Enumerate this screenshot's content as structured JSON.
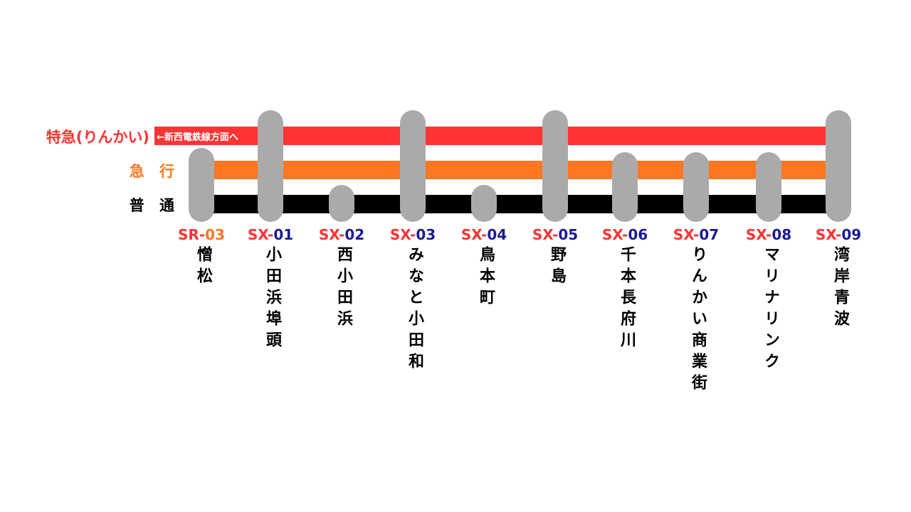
{
  "services": [
    {
      "name": "特急(りんかい)",
      "color": "#ff3333"
    },
    {
      "name": "急 行",
      "color": "#ff7722"
    },
    {
      "name": "普 通",
      "color": "#000000"
    }
  ],
  "note": "←新西電鉄線方面へ",
  "stations": [
    {
      "prefix": "SR-",
      "number": "03",
      "name": "憎松",
      "stops": [
        1,
        2
      ]
    },
    {
      "prefix": "SX-",
      "number": "01",
      "name": "小田浜埠頭",
      "stops": [
        0,
        1,
        2
      ]
    },
    {
      "prefix": "SX-",
      "number": "02",
      "name": "西小田浜",
      "stops": [
        2
      ]
    },
    {
      "prefix": "SX-",
      "number": "03",
      "name": "みなと小田和",
      "stops": [
        0,
        1,
        2
      ]
    },
    {
      "prefix": "SX-",
      "number": "04",
      "name": "鳥本町",
      "stops": [
        2
      ]
    },
    {
      "prefix": "SX-",
      "number": "05",
      "name": "野島",
      "stops": [
        0,
        1,
        2
      ]
    },
    {
      "prefix": "SX-",
      "number": "06",
      "name": "千本長府川",
      "stops": [
        1,
        2
      ]
    },
    {
      "prefix": "SX-",
      "number": "07",
      "name": "りんかい商業街",
      "stops": [
        1,
        2
      ]
    },
    {
      "prefix": "SX-",
      "number": "08",
      "name": "マリナリンク",
      "stops": [
        1,
        2
      ]
    },
    {
      "prefix": "SX-",
      "number": "09",
      "name": "湾岸青波",
      "stops": [
        0,
        1,
        2
      ]
    }
  ]
}
